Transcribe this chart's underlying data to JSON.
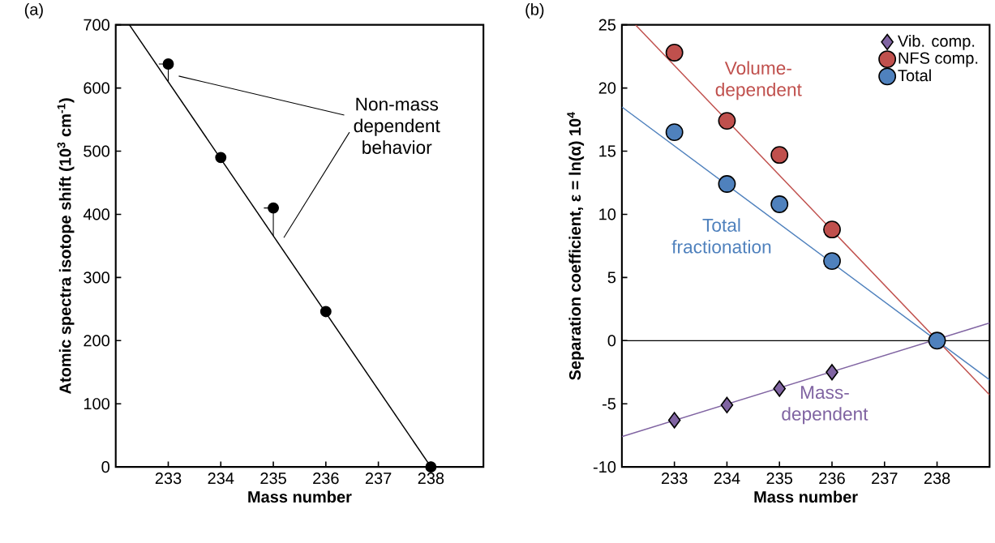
{
  "chart_data": [
    {
      "type": "scatter",
      "title": "(a)",
      "xlabel": "Mass number",
      "ylabel": "Atomic spectra isotope shift  (10$^{3}$ cm$^{-1}$)",
      "xlim": [
        232,
        239
      ],
      "xticks": [
        233,
        234,
        235,
        236,
        237,
        238
      ],
      "ylim": [
        0,
        700
      ],
      "yticks": [
        0,
        100,
        200,
        300,
        400,
        500,
        600,
        700
      ],
      "series": [
        {
          "type": "scatter",
          "marker": "circle",
          "color": "#000000",
          "x": [
            233,
            234,
            235,
            236,
            238
          ],
          "values": [
            638,
            490,
            410,
            246,
            0
          ]
        },
        {
          "type": "line",
          "marker": "none",
          "line_style": "solid",
          "color": "#000000",
          "x": [
            232.26,
            238
          ],
          "values": [
            700,
            0
          ]
        }
      ],
      "annotations": [
        "Non-mass dependent behavior"
      ]
    },
    {
      "type": "scatter",
      "title": "(b)",
      "xlabel": "Mass number",
      "ylabel": "Separation coefficient, ε = ln(α) 10$^{4}$",
      "xlim": [
        232,
        239
      ],
      "xticks": [
        233,
        234,
        235,
        236,
        237,
        238
      ],
      "ylim": [
        -10,
        25
      ],
      "yticks": [
        -10,
        -5,
        0,
        5,
        10,
        15,
        20,
        25
      ],
      "legend": "top right",
      "series": [
        {
          "type": "scatter",
          "name": "Vib. comp.",
          "marker": "diamond",
          "color": "#8064a2",
          "x": [
            233,
            234,
            235,
            236
          ],
          "values": [
            -6.3,
            -5.1,
            -3.8,
            -2.5
          ]
        },
        {
          "type": "scatter",
          "name": "NFS comp.",
          "marker": "circle",
          "color": "#c0504d",
          "x": [
            233,
            234,
            235,
            236
          ],
          "values": [
            22.8,
            17.4,
            14.7,
            8.8
          ]
        },
        {
          "type": "scatter",
          "name": "Total",
          "marker": "circle",
          "color": "#4f81bd",
          "x": [
            233,
            234,
            235,
            236,
            238
          ],
          "values": [
            16.5,
            12.4,
            10.8,
            6.3,
            0
          ]
        },
        {
          "type": "line",
          "name": "Volume-dependent",
          "marker": "none",
          "line_style": "solid",
          "color": "#c0504d",
          "x": [
            232.26,
            239
          ],
          "values": [
            25,
            -4.3
          ]
        },
        {
          "type": "line",
          "name": "Total fractionation",
          "marker": "none",
          "line_style": "solid",
          "color": "#4f81bd",
          "x": [
            232,
            239
          ],
          "values": [
            18.5,
            -3.1
          ]
        },
        {
          "type": "line",
          "name": "Mass-dependent",
          "marker": "none",
          "line_style": "solid",
          "color": "#8064a2",
          "x": [
            232,
            239
          ],
          "values": [
            -7.6,
            1.4
          ]
        }
      ],
      "ref_lines": [
        {
          "axis": "y",
          "value": 0,
          "color": "#000000"
        }
      ]
    }
  ]
}
